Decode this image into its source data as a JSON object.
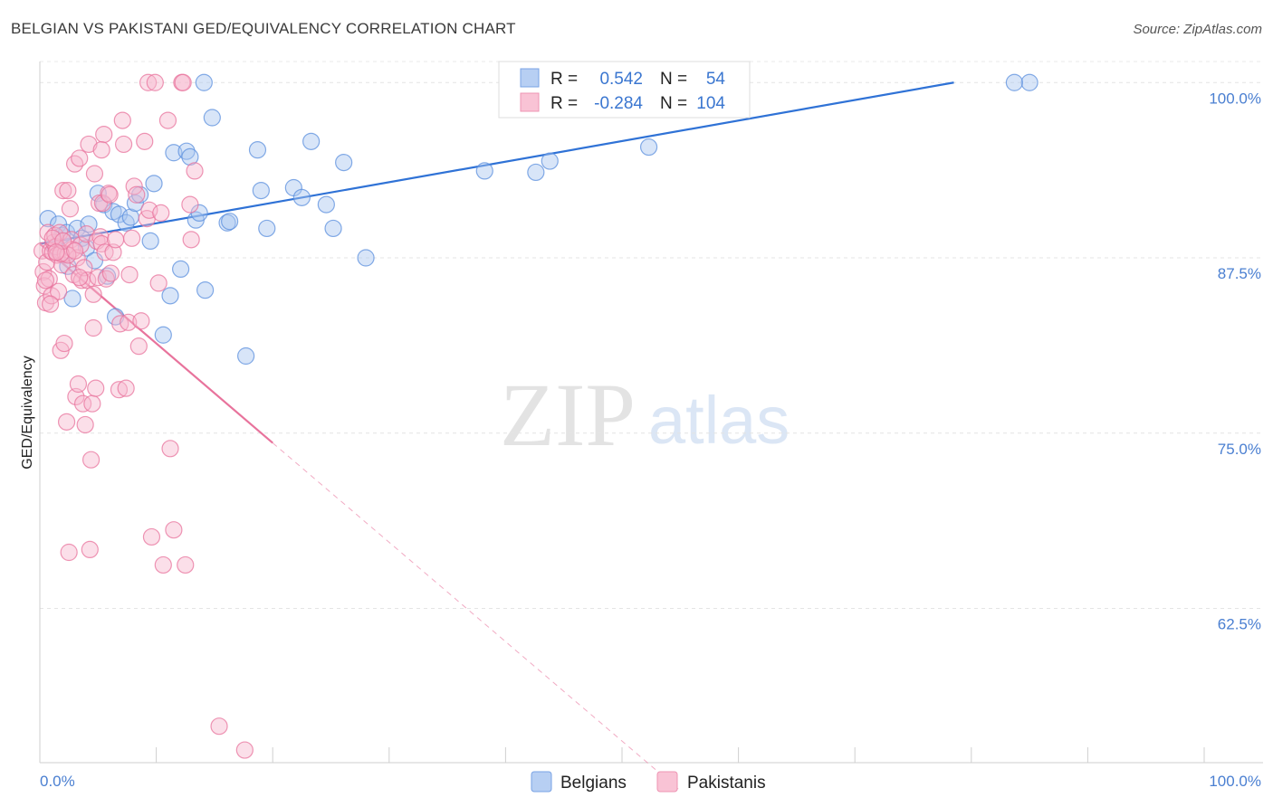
{
  "header": {
    "title": "BELGIAN VS PAKISTANI GED/EQUIVALENCY CORRELATION CHART",
    "source": "Source: ZipAtlas.com"
  },
  "watermark": {
    "zip": "ZIP",
    "atlas": "atlas"
  },
  "legend_box": {
    "rows": [
      {
        "r_label": "R =",
        "r_value": "0.542",
        "n_label": "N =",
        "n_value": "54",
        "color": "#8fb4ec"
      },
      {
        "r_label": "R =",
        "r_value": "-0.284",
        "n_label": "N =",
        "n_value": "104",
        "color": "#f4a6c0"
      }
    ]
  },
  "chart_data": {
    "type": "scatter",
    "title": "BELGIAN VS PAKISTANI GED/EQUIVALENCY CORRELATION CHART",
    "xlabel": "",
    "ylabel": "GED/Equivalency",
    "xlim": [
      0,
      100
    ],
    "ylim": [
      51.5,
      101.5
    ],
    "x_tick_labels": [
      "0.0%",
      "100.0%"
    ],
    "y_ticks": [
      62.5,
      75.0,
      87.5,
      100.0
    ],
    "y_tick_labels": [
      "62.5%",
      "75.0%",
      "87.5%",
      "100.0%"
    ],
    "grid": true,
    "legend_position": "bottom",
    "series": [
      {
        "name": "Belgians",
        "color": "#5b8fdd",
        "fill": "#a9c6f0",
        "r": 0.542,
        "n": 54,
        "trend": {
          "x": [
            0,
            78.5
          ],
          "y": [
            88.5,
            100.0
          ]
        },
        "points": [
          [
            0.7,
            90.3
          ],
          [
            1.3,
            88.3
          ],
          [
            1.6,
            89.9
          ],
          [
            1.9,
            89.1
          ],
          [
            2.3,
            89.3
          ],
          [
            2.4,
            86.9
          ],
          [
            2.8,
            84.6
          ],
          [
            3.2,
            89.6
          ],
          [
            3.6,
            88.9
          ],
          [
            4.0,
            88.2
          ],
          [
            4.2,
            89.9
          ],
          [
            4.7,
            87.3
          ],
          [
            5.0,
            92.1
          ],
          [
            5.5,
            91.3
          ],
          [
            5.8,
            86.2
          ],
          [
            6.3,
            90.8
          ],
          [
            6.5,
            83.3
          ],
          [
            6.8,
            90.6
          ],
          [
            7.4,
            90.0
          ],
          [
            7.8,
            90.4
          ],
          [
            8.2,
            91.4
          ],
          [
            8.6,
            92.0
          ],
          [
            9.5,
            88.7
          ],
          [
            9.8,
            92.8
          ],
          [
            10.6,
            82.0
          ],
          [
            11.2,
            84.8
          ],
          [
            11.5,
            95.0
          ],
          [
            12.1,
            86.7
          ],
          [
            12.6,
            95.1
          ],
          [
            12.9,
            94.7
          ],
          [
            13.4,
            90.2
          ],
          [
            13.7,
            90.7
          ],
          [
            14.1,
            100.0
          ],
          [
            14.2,
            85.2
          ],
          [
            14.8,
            97.5
          ],
          [
            16.1,
            90.0
          ],
          [
            16.3,
            90.1
          ],
          [
            17.7,
            80.5
          ],
          [
            18.7,
            95.2
          ],
          [
            19.0,
            92.3
          ],
          [
            19.5,
            89.6
          ],
          [
            21.8,
            92.5
          ],
          [
            22.5,
            91.8
          ],
          [
            23.3,
            95.8
          ],
          [
            24.6,
            91.3
          ],
          [
            25.2,
            89.6
          ],
          [
            26.1,
            94.3
          ],
          [
            28.0,
            87.5
          ],
          [
            38.2,
            93.7
          ],
          [
            42.6,
            93.6
          ],
          [
            43.8,
            94.4
          ],
          [
            52.3,
            95.4
          ],
          [
            85.0,
            100.0
          ],
          [
            83.7,
            100.0
          ]
        ]
      },
      {
        "name": "Pakistanis",
        "color": "#e8739c",
        "fill": "#f7b9cf",
        "r": -0.284,
        "n": 104,
        "trend": {
          "x": [
            0,
            20
          ],
          "y": [
            88.5,
            74.3
          ]
        },
        "trend_dashed": {
          "x": [
            20,
            55
          ],
          "y": [
            74.3,
            49.5
          ]
        },
        "points": [
          [
            0.2,
            88.0
          ],
          [
            0.3,
            86.5
          ],
          [
            0.4,
            85.5
          ],
          [
            0.5,
            84.3
          ],
          [
            0.6,
            87.2
          ],
          [
            0.7,
            89.3
          ],
          [
            0.8,
            86.0
          ],
          [
            0.9,
            88.0
          ],
          [
            1.0,
            84.8
          ],
          [
            1.1,
            87.9
          ],
          [
            1.2,
            88.6
          ],
          [
            1.3,
            89.1
          ],
          [
            1.4,
            88.3
          ],
          [
            1.5,
            87.7
          ],
          [
            1.6,
            85.1
          ],
          [
            1.7,
            89.3
          ],
          [
            1.8,
            80.9
          ],
          [
            1.9,
            87.0
          ],
          [
            2.0,
            92.3
          ],
          [
            2.1,
            81.4
          ],
          [
            2.2,
            87.8
          ],
          [
            2.3,
            75.8
          ],
          [
            2.4,
            92.3
          ],
          [
            2.5,
            66.5
          ],
          [
            2.6,
            91.0
          ],
          [
            2.7,
            88.8
          ],
          [
            2.8,
            88.1
          ],
          [
            2.9,
            86.3
          ],
          [
            3.0,
            94.2
          ],
          [
            3.1,
            77.6
          ],
          [
            3.2,
            87.5
          ],
          [
            3.3,
            78.5
          ],
          [
            3.4,
            94.6
          ],
          [
            3.5,
            88.4
          ],
          [
            3.6,
            85.9
          ],
          [
            3.7,
            77.1
          ],
          [
            3.8,
            86.8
          ],
          [
            3.9,
            75.6
          ],
          [
            4.0,
            89.2
          ],
          [
            4.1,
            85.9
          ],
          [
            4.2,
            95.6
          ],
          [
            4.3,
            66.7
          ],
          [
            4.4,
            73.1
          ],
          [
            4.5,
            77.1
          ],
          [
            4.6,
            82.5
          ],
          [
            4.7,
            93.5
          ],
          [
            4.8,
            78.2
          ],
          [
            4.9,
            88.7
          ],
          [
            5.0,
            86.1
          ],
          [
            5.1,
            91.4
          ],
          [
            5.2,
            89.0
          ],
          [
            5.3,
            88.5
          ],
          [
            5.4,
            91.4
          ],
          [
            5.5,
            96.3
          ],
          [
            5.6,
            87.9
          ],
          [
            5.7,
            86.0
          ],
          [
            5.9,
            92.1
          ],
          [
            6.1,
            86.4
          ],
          [
            6.3,
            87.9
          ],
          [
            6.5,
            88.8
          ],
          [
            6.8,
            78.1
          ],
          [
            6.9,
            82.8
          ],
          [
            7.1,
            97.3
          ],
          [
            7.2,
            95.6
          ],
          [
            7.4,
            78.2
          ],
          [
            7.6,
            82.9
          ],
          [
            7.7,
            86.3
          ],
          [
            7.9,
            88.9
          ],
          [
            8.1,
            92.6
          ],
          [
            8.3,
            92.0
          ],
          [
            8.5,
            81.2
          ],
          [
            8.7,
            83.0
          ],
          [
            9.0,
            95.8
          ],
          [
            9.2,
            90.3
          ],
          [
            9.3,
            100.0
          ],
          [
            9.4,
            90.9
          ],
          [
            9.6,
            67.6
          ],
          [
            9.9,
            100.0
          ],
          [
            10.2,
            85.7
          ],
          [
            10.4,
            90.7
          ],
          [
            10.6,
            65.6
          ],
          [
            11.0,
            97.3
          ],
          [
            11.2,
            73.9
          ],
          [
            11.5,
            68.1
          ],
          [
            12.2,
            100.0
          ],
          [
            12.3,
            100.0
          ],
          [
            12.5,
            65.6
          ],
          [
            12.9,
            91.3
          ],
          [
            13.0,
            88.8
          ],
          [
            13.3,
            93.7
          ],
          [
            15.4,
            54.1
          ],
          [
            17.6,
            52.4
          ],
          [
            0.5,
            85.9
          ],
          [
            1.1,
            88.9
          ],
          [
            2.4,
            87.7
          ],
          [
            3.4,
            86.1
          ],
          [
            1.8,
            87.8
          ],
          [
            0.9,
            84.2
          ],
          [
            2.0,
            88.7
          ],
          [
            5.3,
            95.2
          ],
          [
            6.0,
            92.0
          ],
          [
            4.6,
            84.9
          ],
          [
            3.0,
            88.0
          ],
          [
            1.4,
            87.9
          ]
        ]
      }
    ]
  },
  "bottom_legend": {
    "items": [
      {
        "label": "Belgians",
        "color": "#8fb4ec"
      },
      {
        "label": "Pakistanis",
        "color": "#f4a6c0"
      }
    ]
  }
}
